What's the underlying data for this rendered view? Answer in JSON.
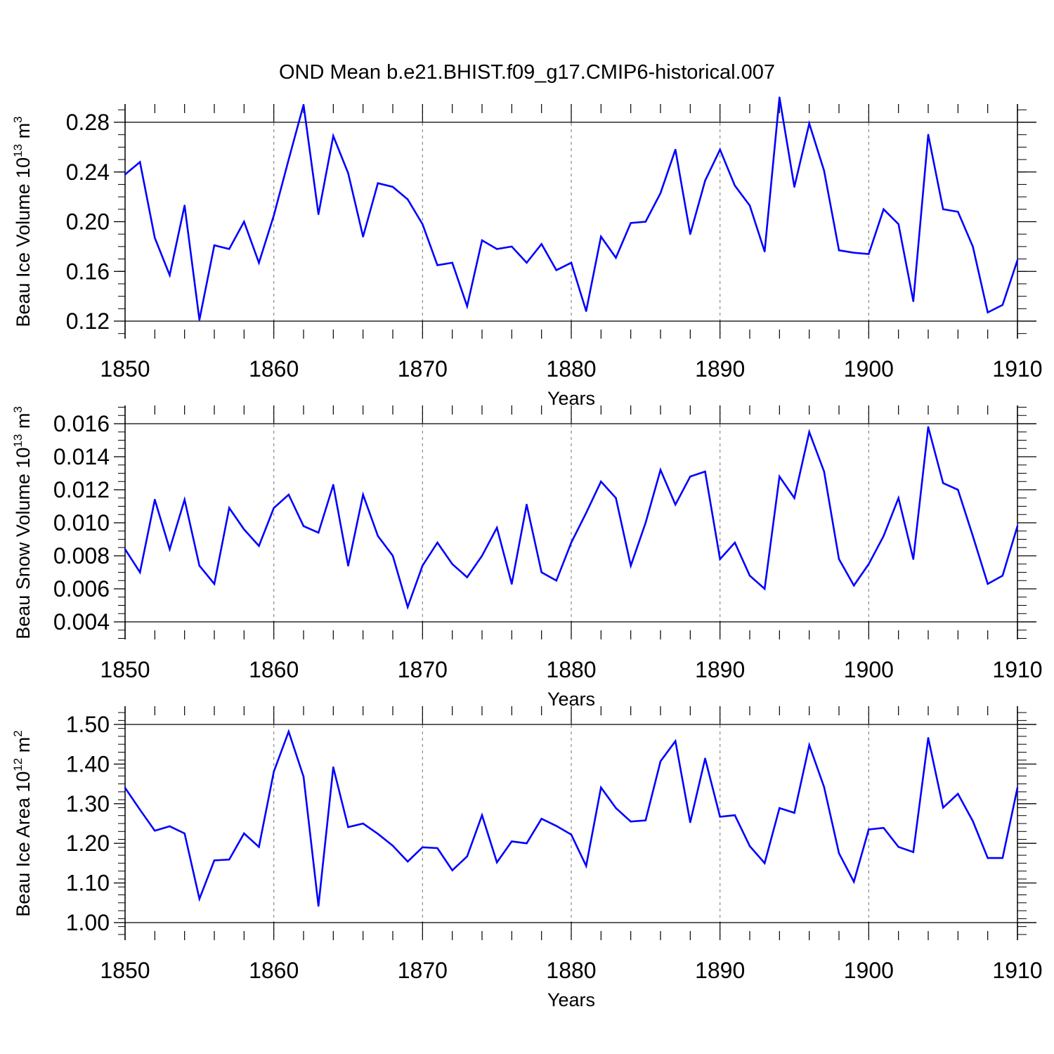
{
  "title": "OND Mean b.e21.BHIST.f09_g17.CMIP6-historical.007",
  "chart_data": [
    {
      "type": "line",
      "xlabel": "Years",
      "ylabel": {
        "prefix": "Beau Ice Volume 10",
        "exp": "13",
        "unit": " m",
        "unit_exp": "3"
      },
      "xlim": [
        1850,
        1910
      ],
      "ylim": [
        0.11,
        0.3
      ],
      "xticks": [
        1850,
        1860,
        1870,
        1880,
        1890,
        1900,
        1910
      ],
      "xtick_labels": [
        "1850",
        "1860",
        "1870",
        "1880",
        "1890",
        "1900",
        "1910"
      ],
      "yticks": [
        0.12,
        0.16,
        0.2,
        0.24,
        0.28
      ],
      "ytick_labels": [
        "0.12",
        "0.16",
        "0.20",
        "0.24",
        "0.28"
      ],
      "ytick_minor_step": 0.01,
      "line_color": "#0000ff",
      "x": [
        1850,
        1851,
        1852,
        1853,
        1854,
        1855,
        1856,
        1857,
        1858,
        1859,
        1860,
        1861,
        1862,
        1863,
        1864,
        1865,
        1866,
        1867,
        1868,
        1869,
        1870,
        1871,
        1872,
        1873,
        1874,
        1875,
        1876,
        1877,
        1878,
        1879,
        1880,
        1881,
        1882,
        1883,
        1884,
        1885,
        1886,
        1887,
        1888,
        1889,
        1890,
        1891,
        1892,
        1893,
        1894,
        1895,
        1896,
        1897,
        1898,
        1899,
        1900,
        1901,
        1902,
        1903,
        1904,
        1905,
        1906,
        1907,
        1908,
        1909,
        1910
      ],
      "values": [
        0.238,
        0.248,
        0.187,
        0.157,
        0.213,
        0.121,
        0.181,
        0.178,
        0.2,
        0.167,
        0.205,
        0.25,
        0.294,
        0.206,
        0.269,
        0.239,
        0.188,
        0.231,
        0.228,
        0.218,
        0.198,
        0.165,
        0.167,
        0.132,
        0.185,
        0.178,
        0.18,
        0.167,
        0.182,
        0.161,
        0.167,
        0.128,
        0.188,
        0.171,
        0.199,
        0.2,
        0.223,
        0.258,
        0.19,
        0.233,
        0.258,
        0.229,
        0.213,
        0.176,
        0.3,
        0.228,
        0.279,
        0.241,
        0.177,
        0.175,
        0.174,
        0.21,
        0.198,
        0.136,
        0.27,
        0.21,
        0.208,
        0.18,
        0.127,
        0.133,
        0.169
      ]
    },
    {
      "type": "line",
      "xlabel": "Years",
      "ylabel": {
        "prefix": "Beau Snow Volume 10",
        "exp": "13",
        "unit": " m",
        "unit_exp": "3"
      },
      "xlim": [
        1850,
        1910
      ],
      "ylim": [
        0.003,
        0.017
      ],
      "xticks": [
        1850,
        1860,
        1870,
        1880,
        1890,
        1900,
        1910
      ],
      "xtick_labels": [
        "1850",
        "1860",
        "1870",
        "1880",
        "1890",
        "1900",
        "1910"
      ],
      "yticks": [
        0.004,
        0.006,
        0.008,
        0.01,
        0.012,
        0.014,
        0.016
      ],
      "ytick_labels": [
        "0.004",
        "0.006",
        "0.008",
        "0.010",
        "0.012",
        "0.014",
        "0.016"
      ],
      "ytick_minor_step": 0.0005,
      "line_color": "#0000ff",
      "x": [
        1850,
        1851,
        1852,
        1853,
        1854,
        1855,
        1856,
        1857,
        1858,
        1859,
        1860,
        1861,
        1862,
        1863,
        1864,
        1865,
        1866,
        1867,
        1868,
        1869,
        1870,
        1871,
        1872,
        1873,
        1874,
        1875,
        1876,
        1877,
        1878,
        1879,
        1880,
        1881,
        1882,
        1883,
        1884,
        1885,
        1886,
        1887,
        1888,
        1889,
        1890,
        1891,
        1892,
        1893,
        1894,
        1895,
        1896,
        1897,
        1898,
        1899,
        1900,
        1901,
        1902,
        1903,
        1904,
        1905,
        1906,
        1907,
        1908,
        1909,
        1910
      ],
      "values": [
        0.0084,
        0.007,
        0.0114,
        0.0084,
        0.0114,
        0.0074,
        0.0063,
        0.0109,
        0.0096,
        0.0086,
        0.0109,
        0.0117,
        0.0098,
        0.0094,
        0.0123,
        0.0074,
        0.0117,
        0.0092,
        0.008,
        0.0049,
        0.0074,
        0.0088,
        0.0075,
        0.0067,
        0.008,
        0.0097,
        0.0063,
        0.0111,
        0.007,
        0.0065,
        0.0088,
        0.0106,
        0.0125,
        0.0115,
        0.0074,
        0.01,
        0.0132,
        0.0111,
        0.0128,
        0.0131,
        0.0078,
        0.0088,
        0.0068,
        0.006,
        0.0128,
        0.0115,
        0.0155,
        0.0131,
        0.0078,
        0.0062,
        0.0075,
        0.0092,
        0.0115,
        0.0078,
        0.0158,
        0.0124,
        0.012,
        0.0092,
        0.0063,
        0.0068,
        0.0098
      ]
    },
    {
      "type": "line",
      "xlabel": "Years",
      "ylabel": {
        "prefix": "Beau Ice Area 10",
        "exp": "12",
        "unit": " m",
        "unit_exp": "2"
      },
      "xlim": [
        1850,
        1910
      ],
      "ylim": [
        0.95,
        1.55
      ],
      "xticks": [
        1850,
        1860,
        1870,
        1880,
        1890,
        1900,
        1910
      ],
      "xtick_labels": [
        "1850",
        "1860",
        "1870",
        "1880",
        "1890",
        "1900",
        "1910"
      ],
      "yticks": [
        1.0,
        1.1,
        1.2,
        1.3,
        1.4,
        1.5
      ],
      "ytick_labels": [
        "1.00",
        "1.10",
        "1.20",
        "1.30",
        "1.40",
        "1.50"
      ],
      "ytick_minor_step": 0.02,
      "line_color": "#0000ff",
      "x": [
        1850,
        1851,
        1852,
        1853,
        1854,
        1855,
        1856,
        1857,
        1858,
        1859,
        1860,
        1861,
        1862,
        1863,
        1864,
        1865,
        1866,
        1867,
        1868,
        1869,
        1870,
        1871,
        1872,
        1873,
        1874,
        1875,
        1876,
        1877,
        1878,
        1879,
        1880,
        1881,
        1882,
        1883,
        1884,
        1885,
        1886,
        1887,
        1888,
        1889,
        1890,
        1891,
        1892,
        1893,
        1894,
        1895,
        1896,
        1897,
        1898,
        1899,
        1900,
        1901,
        1902,
        1903,
        1904,
        1905,
        1906,
        1907,
        1908,
        1909,
        1910
      ],
      "values": [
        1.34,
        1.285,
        1.232,
        1.243,
        1.225,
        1.06,
        1.157,
        1.159,
        1.225,
        1.191,
        1.381,
        1.482,
        1.368,
        1.042,
        1.392,
        1.241,
        1.25,
        1.224,
        1.194,
        1.154,
        1.19,
        1.188,
        1.132,
        1.167,
        1.271,
        1.152,
        1.205,
        1.2,
        1.262,
        1.244,
        1.222,
        1.143,
        1.341,
        1.289,
        1.255,
        1.258,
        1.407,
        1.458,
        1.253,
        1.414,
        1.267,
        1.271,
        1.193,
        1.15,
        1.289,
        1.277,
        1.448,
        1.342,
        1.175,
        1.103,
        1.235,
        1.239,
        1.191,
        1.178,
        1.466,
        1.29,
        1.325,
        1.256,
        1.163,
        1.163,
        1.34
      ]
    }
  ]
}
